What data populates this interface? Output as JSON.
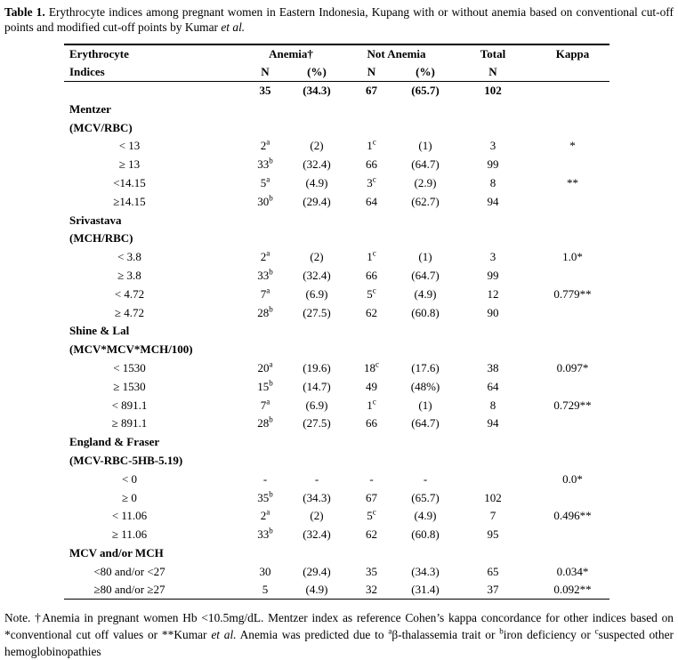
{
  "page": {
    "title_segments": [
      {
        "t": "Table 1.",
        "b": true
      },
      {
        "t": " Erythrocyte indices among pregnant women in Eastern Indonesia, Kupang with or without anemia based on conventional cut-off points and modified cut-off points by Kumar "
      },
      {
        "t": "et al.",
        "i": true
      }
    ],
    "footnote_segments": [
      {
        "t": "Note. †Anemia in pregnant women Hb <10.5mg/dL. Mentzer index as reference Cohen’s kappa concordance for other indices based on *conventional cut off values or **Kumar "
      },
      {
        "t": "et al.",
        "i": true
      },
      {
        "t": " Anemia was predicted due to "
      },
      {
        "t": "a",
        "sup": true
      },
      {
        "t": "β-thalassemia trait or "
      },
      {
        "t": "b",
        "sup": true
      },
      {
        "t": "iron deficiency or "
      },
      {
        "t": "c",
        "sup": true
      },
      {
        "t": "suspected other hemoglobinopathies"
      }
    ]
  },
  "table": {
    "header": {
      "col1_line1": "Erythrocyte",
      "col1_line2": "Indices",
      "anemia": "Anemia†",
      "not_anemia": "Not Anemia",
      "total": "Total",
      "kappa": "Kappa",
      "n": "N",
      "pct": "(%)"
    },
    "totals_row": {
      "label": "",
      "n1": "35",
      "s1": "",
      "p1": "(34.3)",
      "n2": "67",
      "s2": "",
      "p2": "(65.7)",
      "tot": "102",
      "kappa": ""
    },
    "sections": [
      {
        "name": "Mentzer",
        "formula": "(MCV/RBC)",
        "rows": [
          {
            "label": "< 13",
            "n1": "2",
            "s1": "a",
            "p1": "(2)",
            "n2": "1",
            "s2": "c",
            "p2": "(1)",
            "tot": "3",
            "kappa": "*"
          },
          {
            "label": "≥ 13",
            "n1": "33",
            "s1": "b",
            "p1": "(32.4)",
            "n2": "66",
            "s2": "",
            "p2": "(64.7)",
            "tot": "99",
            "kappa": ""
          },
          {
            "label": "<14.15",
            "n1": "5",
            "s1": "a",
            "p1": "(4.9)",
            "n2": "3",
            "s2": "c",
            "p2": "(2.9)",
            "tot": "8",
            "kappa": "**"
          },
          {
            "label": "≥14.15",
            "n1": "30",
            "s1": "b",
            "p1": "(29.4)",
            "n2": "64",
            "s2": "",
            "p2": "(62.7)",
            "tot": "94",
            "kappa": ""
          }
        ]
      },
      {
        "name": "Srivastava",
        "formula": "(MCH/RBC)",
        "rows": [
          {
            "label": "< 3.8",
            "n1": "2",
            "s1": "a",
            "p1": "(2)",
            "n2": "1",
            "s2": "c",
            "p2": "(1)",
            "tot": "3",
            "kappa": "1.0*"
          },
          {
            "label": "≥ 3.8",
            "n1": "33",
            "s1": "b",
            "p1": "(32.4)",
            "n2": "66",
            "s2": "",
            "p2": "(64.7)",
            "tot": "99",
            "kappa": ""
          },
          {
            "label": "< 4.72",
            "n1": "7",
            "s1": "a",
            "p1": "(6.9)",
            "n2": "5",
            "s2": "c",
            "p2": "(4.9)",
            "tot": "12",
            "kappa": "0.779**"
          },
          {
            "label": "≥ 4.72",
            "n1": "28",
            "s1": "b",
            "p1": "(27.5)",
            "n2": "62",
            "s2": "",
            "p2": "(60.8)",
            "tot": "90",
            "kappa": ""
          }
        ]
      },
      {
        "name": "Shine & Lal",
        "formula": "(MCV*MCV*MCH/100)",
        "rows": [
          {
            "label": "< 1530",
            "n1": "20",
            "s1": "a",
            "p1": "(19.6)",
            "n2": "18",
            "s2": "c",
            "p2": "(17.6)",
            "tot": "38",
            "kappa": "0.097*"
          },
          {
            "label": "≥ 1530",
            "n1": "15",
            "s1": "b",
            "p1": "(14.7)",
            "n2": "49",
            "s2": "",
            "p2": "(48%)",
            "tot": "64",
            "kappa": ""
          },
          {
            "label": "< 891.1",
            "n1": "7",
            "s1": "a",
            "p1": "(6.9)",
            "n2": "1",
            "s2": "c",
            "p2": "(1)",
            "tot": "8",
            "kappa": "0.729**"
          },
          {
            "label": "≥ 891.1",
            "n1": "28",
            "s1": "b",
            "p1": "(27.5)",
            "n2": "66",
            "s2": "",
            "p2": "(64.7)",
            "tot": "94",
            "kappa": ""
          }
        ]
      },
      {
        "name": "England & Fraser",
        "formula": "(MCV-RBC-5HB-5.19)",
        "rows": [
          {
            "label": "< 0",
            "n1": "-",
            "s1": "",
            "p1": "-",
            "n2": "-",
            "s2": "",
            "p2": "-",
            "tot": "",
            "kappa": "0.0*"
          },
          {
            "label": "≥ 0",
            "n1": "35",
            "s1": "b",
            "p1": "(34.3)",
            "n2": "67",
            "s2": "",
            "p2": "(65.7)",
            "tot": "102",
            "kappa": ""
          },
          {
            "label": "< 11.06",
            "n1": "2",
            "s1": "a",
            "p1": "(2)",
            "n2": "5",
            "s2": "c",
            "p2": "(4.9)",
            "tot": "7",
            "kappa": "0.496**"
          },
          {
            "label": "≥ 11.06",
            "n1": "33",
            "s1": "b",
            "p1": "(32.4)",
            "n2": "62",
            "s2": "",
            "p2": "(60.8)",
            "tot": "95",
            "kappa": ""
          }
        ]
      },
      {
        "name": "MCV and/or MCH",
        "formula": "",
        "rows": [
          {
            "label": "<80 and/or <27",
            "n1": "30",
            "s1": "",
            "p1": "(29.4)",
            "n2": "35",
            "s2": "",
            "p2": "(34.3)",
            "tot": "65",
            "kappa": "0.034*"
          },
          {
            "label": "≥80 and/or ≥27",
            "n1": "5",
            "s1": "",
            "p1": "(4.9)",
            "n2": "32",
            "s2": "",
            "p2": "(31.4)",
            "tot": "37",
            "kappa": "0.092**"
          }
        ]
      }
    ]
  }
}
